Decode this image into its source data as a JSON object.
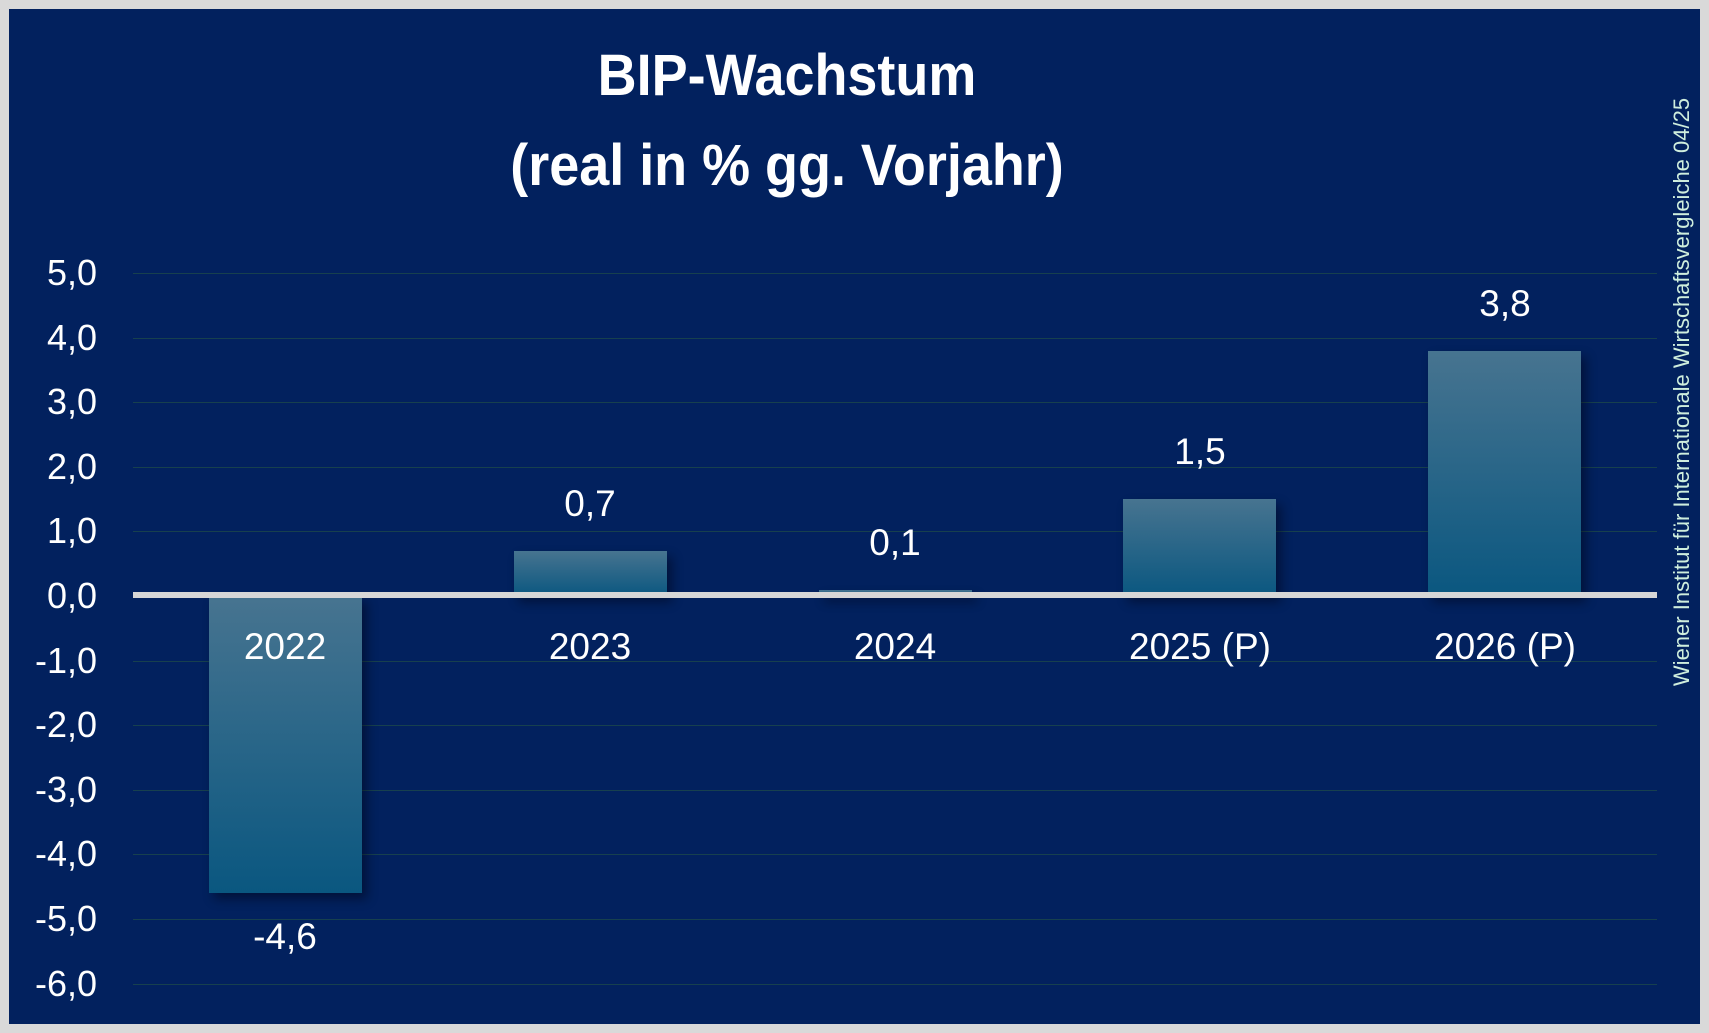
{
  "title": {
    "line1": "BIP-Wachstum",
    "line2": "(real in % gg. Vorjahr)"
  },
  "sidebar_note": "Wiener Institut für Internationale Wirtschaftsvergleiche 04/25",
  "colors": {
    "background": "#02215e",
    "frame": "#d9d9d9",
    "bar_top": "#477490",
    "bar_bottom": "#0a5780",
    "zero_line": "#d7d7d7",
    "gridline": "#1b454b",
    "text": "#ffffff",
    "note_text": "#cfeedd"
  },
  "chart_data": {
    "type": "bar",
    "title": "BIP-Wachstum (real in % gg. Vorjahr)",
    "categories": [
      "2022",
      "2023",
      "2024",
      "2025 (P)",
      "2026 (P)"
    ],
    "values": [
      -4.6,
      0.7,
      0.1,
      1.5,
      3.8
    ],
    "value_labels": [
      "-4,6",
      "0,7",
      "0,1",
      "1,5",
      "3,8"
    ],
    "xlabel": "",
    "ylabel": "",
    "ylim": [
      -6.5,
      5.5
    ],
    "yticks": [
      5,
      4,
      3,
      2,
      1,
      0,
      -1,
      -2,
      -3,
      -4,
      -5,
      -6
    ],
    "ytick_labels": [
      "5,0",
      "4,0",
      "3,0",
      "2,0",
      "1,0",
      "0,0",
      "-1,0",
      "-2,0",
      "-3,0",
      "-4,0",
      "-5,0",
      "-6,0"
    ],
    "grid": true,
    "legend": false,
    "source_note": "Wiener Institut für Internationale Wirtschaftsvergleiche 04/25"
  }
}
